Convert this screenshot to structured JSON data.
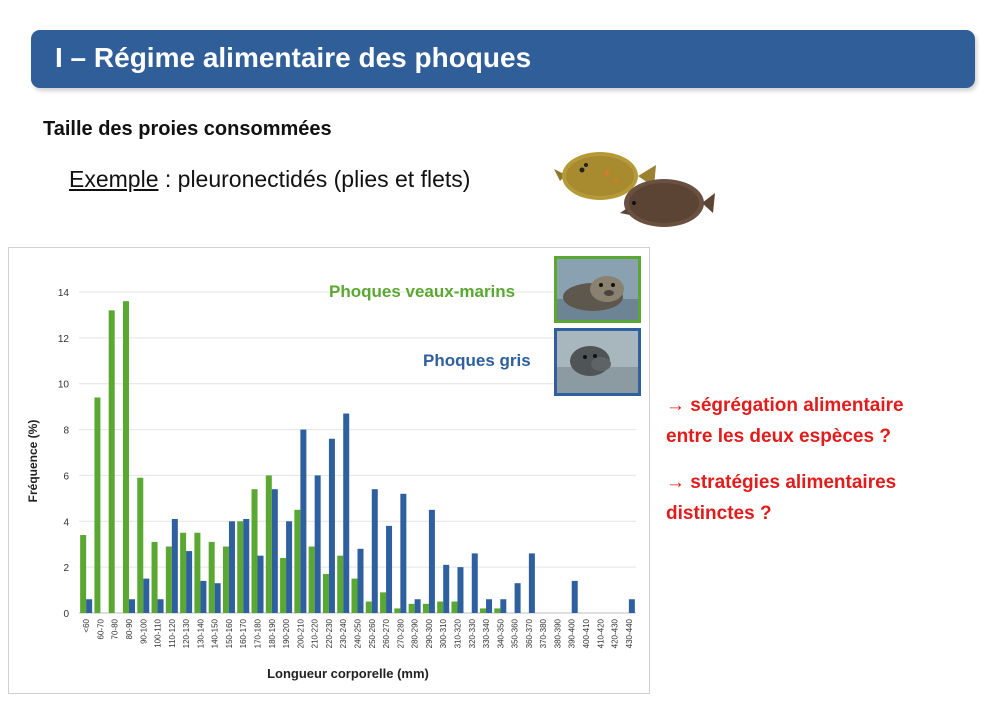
{
  "header": {
    "title": "I – Régime alimentaire des phoques"
  },
  "section": {
    "title": "Taille des proies consommées",
    "example_label": "Exemple",
    "example_text": " : pleuronectidés (plies et flets)"
  },
  "notes": [
    {
      "line1": "→ ségrégation alimentaire",
      "line2": "entre les deux espèces ?"
    },
    {
      "line1": "→ stratégies alimentaires",
      "line2": "distinctes ?"
    }
  ],
  "colors": {
    "banner": "#2f5e99",
    "green": "#5aa832",
    "blue": "#2e5f9e",
    "note": "#e31b1b"
  },
  "chart_data": {
    "type": "bar",
    "xlabel": "Longueur corporelle (mm)",
    "ylabel": "Fréquence (%)",
    "ylim": [
      0,
      14
    ],
    "yticks": [
      0,
      2,
      4,
      6,
      8,
      10,
      12,
      14
    ],
    "grid": true,
    "legend_position": "top-right",
    "categories": [
      "<60",
      "60-70",
      "70-80",
      "80-90",
      "90-100",
      "100-110",
      "110-120",
      "120-130",
      "130-140",
      "140-150",
      "150-160",
      "160-170",
      "170-180",
      "180-190",
      "190-200",
      "200-210",
      "210-220",
      "220-230",
      "230-240",
      "240-250",
      "250-260",
      "260-270",
      "270-280",
      "280-290",
      "290-300",
      "300-310",
      "310-320",
      "320-330",
      "330-340",
      "340-350",
      "350-360",
      "360-370",
      "370-380",
      "380-390",
      "390-400",
      "400-410",
      "410-420",
      "420-430",
      "430-440"
    ],
    "series": [
      {
        "name": "Phoques veaux-marins",
        "color": "#5aa832",
        "values": [
          3.4,
          9.4,
          13.2,
          13.6,
          5.9,
          3.1,
          2.9,
          3.5,
          3.5,
          3.1,
          2.9,
          4.0,
          5.4,
          6.0,
          2.4,
          4.5,
          2.9,
          1.7,
          2.5,
          1.5,
          0.5,
          0.9,
          0.2,
          0.4,
          0.4,
          0.5,
          0.5,
          0,
          0.2,
          0.2,
          0,
          0,
          0,
          0,
          0,
          0,
          0,
          0,
          0
        ]
      },
      {
        "name": "Phoques gris",
        "color": "#2e5f9e",
        "values": [
          0.6,
          0,
          0,
          0.6,
          1.5,
          0.6,
          4.1,
          2.7,
          1.4,
          1.3,
          4.0,
          4.1,
          2.5,
          5.4,
          4.0,
          8.0,
          6.0,
          7.6,
          8.7,
          2.8,
          5.4,
          3.8,
          5.2,
          0.6,
          4.5,
          2.1,
          2.0,
          2.6,
          0.6,
          0.6,
          1.3,
          2.6,
          0,
          0,
          1.4,
          0,
          0,
          0,
          0.6
        ]
      }
    ]
  }
}
